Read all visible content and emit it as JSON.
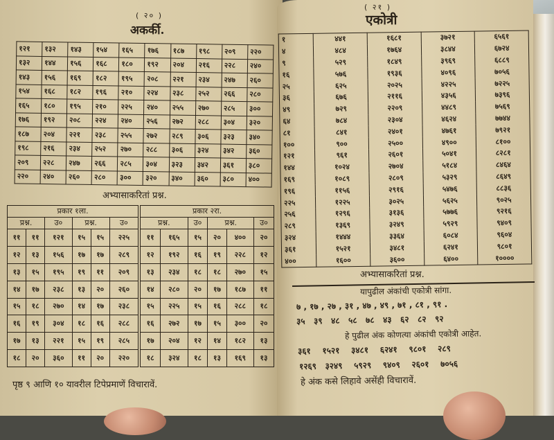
{
  "left_page": {
    "page_number": "( २० )",
    "title": "अकर्की.",
    "multiplication_table": [
      [
        "१२१",
        "१३२",
        "१४३",
        "१५४",
        "१६५",
        "१७६",
        "१८७",
        "१९८",
        "२०९",
        "२२०"
      ],
      [
        "१३२",
        "१४४",
        "१५६",
        "१६८",
        "१८०",
        "१९२",
        "२०४",
        "२१६",
        "२२८",
        "२४०"
      ],
      [
        "१४३",
        "१५६",
        "१६९",
        "१८२",
        "१९५",
        "२०८",
        "२२१",
        "२३४",
        "२४७",
        "२६०"
      ],
      [
        "१५४",
        "१६८",
        "१८२",
        "१९६",
        "२१०",
        "२२४",
        "२३८",
        "२५२",
        "२६६",
        "२८०"
      ],
      [
        "१६५",
        "१८०",
        "१९५",
        "२१०",
        "२२५",
        "२४०",
        "२५५",
        "२७०",
        "२८५",
        "३००"
      ],
      [
        "१७६",
        "१९२",
        "२०८",
        "२२४",
        "२४०",
        "२५६",
        "२७२",
        "२८८",
        "३०४",
        "३२०"
      ],
      [
        "१८७",
        "२०४",
        "२२१",
        "२३८",
        "२५५",
        "२७२",
        "२८९",
        "३०६",
        "३२३",
        "३४०"
      ],
      [
        "१९८",
        "२१६",
        "२३४",
        "२५२",
        "२७०",
        "२८८",
        "३०६",
        "३२४",
        "३४२",
        "३६०"
      ],
      [
        "२०९",
        "२२८",
        "२४७",
        "२६६",
        "२८५",
        "३०४",
        "३२३",
        "३४२",
        "३६१",
        "३८०"
      ],
      [
        "२२०",
        "२४०",
        "२६०",
        "२८०",
        "३००",
        "३२०",
        "३४०",
        "३६०",
        "३८०",
        "४००"
      ]
    ],
    "practice_heading": "अभ्यासाकरितां प्रश्न.",
    "practice": {
      "type1_label": "प्रकार १ला.",
      "type2_label": "प्रकार २रा.",
      "question_label": "प्रश्न.",
      "answer_label": "उ०",
      "rows": [
        [
          "११",
          "११",
          "१२१",
          "१५",
          "१५",
          "२२५",
          "११",
          "१६५",
          "१५",
          "२०",
          "४००",
          "२०"
        ],
        [
          "१२",
          "१३",
          "१५६",
          "१७",
          "१७",
          "२८९",
          "१२",
          "१९२",
          "१६",
          "१९",
          "२२८",
          "१२"
        ],
        [
          "१३",
          "१५",
          "१९५",
          "१९",
          "११",
          "२०९",
          "१३",
          "२३४",
          "१८",
          "१८",
          "२७०",
          "१५"
        ],
        [
          "१४",
          "१७",
          "२३८",
          "१३",
          "२०",
          "२६०",
          "१४",
          "२८०",
          "२०",
          "१७",
          "१८७",
          "११"
        ],
        [
          "१५",
          "१८",
          "२७०",
          "१४",
          "१७",
          "२३८",
          "१५",
          "२२५",
          "१५",
          "१६",
          "२८८",
          "१८"
        ],
        [
          "१६",
          "१९",
          "३०४",
          "१८",
          "१६",
          "२८८",
          "१६",
          "२७२",
          "१७",
          "१५",
          "३००",
          "२०"
        ],
        [
          "१७",
          "१३",
          "२२१",
          "१५",
          "१९",
          "२८५",
          "१७",
          "२०४",
          "१२",
          "१४",
          "१८२",
          "१३"
        ],
        [
          "१८",
          "२०",
          "३६०",
          "११",
          "२०",
          "२२०",
          "१८",
          "३२४",
          "१८",
          "१३",
          "१६९",
          "१३"
        ]
      ]
    },
    "footer": "पृष्ठ ९ आणि १० यावरील टिपेप्रमाणें विचारावें."
  },
  "right_page": {
    "page_number": "( २१ )",
    "title": "एकोत्री",
    "squares_columns": [
      [
        "१",
        "४",
        "९",
        "१६",
        "२५",
        "३६",
        "४९",
        "६४",
        "८१",
        "१००",
        "१२१",
        "१४४",
        "१६९",
        "१९६",
        "२२५",
        "२५६",
        "२८९",
        "३२४",
        "३६१",
        "४००"
      ],
      [
        "४४१",
        "४८४",
        "५२९",
        "५७६",
        "६२५",
        "६७६",
        "७२९",
        "७८४",
        "८४१",
        "९००",
        "९६१",
        "१०२४",
        "१०८९",
        "११५६",
        "१२२५",
        "१२९६",
        "१३६९",
        "१४४४",
        "१५२१",
        "१६००"
      ],
      [
        "१६८१",
        "१७६४",
        "१८४९",
        "१९३६",
        "२०२५",
        "२११६",
        "२२०९",
        "२३०४",
        "२४०१",
        "२५००",
        "२६०१",
        "२७०४",
        "२८०९",
        "२९१६",
        "३०२५",
        "३१३६",
        "३२४९",
        "३३६४",
        "३४८१",
        "३६००"
      ],
      [
        "३७२१",
        "३८४४",
        "३९६९",
        "४०९६",
        "४२२५",
        "४३५६",
        "४४८९",
        "४६२४",
        "४७६१",
        "४९००",
        "५०४१",
        "५१८४",
        "५३२९",
        "५४७६",
        "५६२५",
        "५७७६",
        "५९२९",
        "६०८४",
        "६२४१",
        "६४००"
      ],
      [
        "६५६१",
        "६७२४",
        "६८८९",
        "७०५६",
        "७२२५",
        "७३९६",
        "७५६९",
        "७७४४",
        "७९२१",
        "८१००",
        "८२८१",
        "८४६४",
        "८६४९",
        "८८३६",
        "९०२५",
        "९२१६",
        "९४०९",
        "९६०४",
        "९८०१",
        "१००००"
      ]
    ],
    "practice_heading": "अभ्यासाकरितां प्रश्न.",
    "q1_heading": "यापुढील अंकांची एकोत्री सांगा.",
    "q1_line1": "७ , १७ , २७ , ३१ , ४७ , ४९ , ७१ , ८१ , ९१ .",
    "q1_line2": "३५   ३९   ४८   ५८   ७८   ४३   ६२   ८२   ९२",
    "q2_heading": "हे पुढील अंक कोणत्या अंकांची एकोत्री आहेत.",
    "q2_line1": "३६१    १५२१    ३४८१    ६२४१    ९८०१    २८९",
    "q2_line2": "१२६९   ३२४९    ५९२९    ९४०९    २६०१    ७०५६",
    "q2_footer": "हे अंक कसे लिहावे असेंही विचारावें."
  }
}
